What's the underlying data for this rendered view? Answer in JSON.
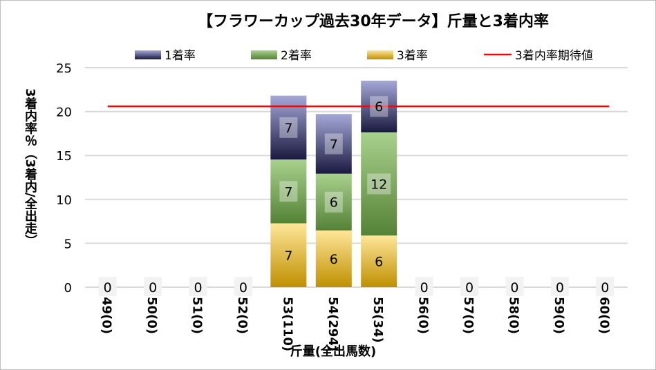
{
  "chart_data": {
    "type": "bar",
    "stacked": true,
    "title": "【フラワーカップ過去30年データ】斤量と3着内率",
    "xlabel": "斤量(全出馬数)",
    "ylabel": "3着内率％（3着内/全出走）",
    "ylim": [
      0,
      25
    ],
    "yticks": [
      0,
      5,
      10,
      15,
      20,
      25
    ],
    "grid": true,
    "legend_position": "top",
    "categories": [
      "49(0)",
      "50(0)",
      "51(0)",
      "52(0)",
      "53(110)",
      "54(294)",
      "55(34)",
      "56(0)",
      "57(0)",
      "58(0)",
      "59(0)",
      "60(0)"
    ],
    "series": [
      {
        "name": "3着率",
        "values": [
          0,
          0,
          0,
          0,
          7.27,
          6.46,
          5.88,
          0,
          0,
          0,
          0,
          0
        ],
        "labels": [
          "0",
          "0",
          "0",
          "0",
          "7",
          "6",
          "6",
          "0",
          "0",
          "0",
          "0",
          "0"
        ],
        "color_top": "#ffe699",
        "color_bottom": "#bf9000"
      },
      {
        "name": "2着率",
        "values": [
          0,
          0,
          0,
          0,
          7.27,
          6.46,
          11.76,
          0,
          0,
          0,
          0,
          0
        ],
        "labels": [
          "",
          "",
          "",
          "",
          "7",
          "6",
          "12",
          "",
          "",
          "",
          "",
          ""
        ],
        "color_top": "#a9d18e",
        "color_bottom": "#548235"
      },
      {
        "name": "1着率",
        "values": [
          0,
          0,
          0,
          0,
          7.27,
          6.8,
          5.88,
          0,
          0,
          0,
          0,
          0
        ],
        "labels": [
          "",
          "",
          "",
          "",
          "7",
          "7",
          "6",
          "",
          "",
          "",
          "",
          ""
        ],
        "color_top": "#a5a8d8",
        "color_bottom": "#1a1a40"
      }
    ],
    "reference_line": {
      "name": "3着内率期待値",
      "value": 20.6,
      "color": "#ff0000"
    }
  }
}
